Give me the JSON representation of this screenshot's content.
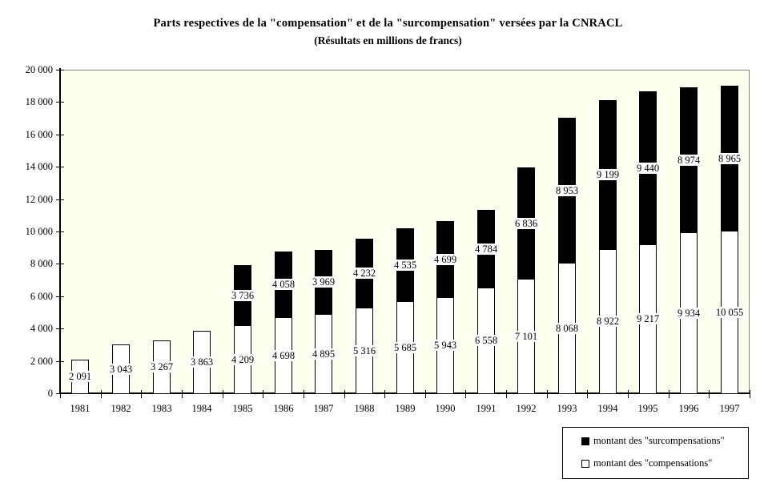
{
  "chart_data": {
    "type": "bar",
    "stacked": true,
    "title": "Parts respectives de la \"compensation\" et de la \"surcompensation\" versées par la CNRACL",
    "subtitle": "(Résultats en millions de francs)",
    "unit": "millions de francs",
    "categories": [
      "1981",
      "1982",
      "1983",
      "1984",
      "1985",
      "1986",
      "1987",
      "1988",
      "1989",
      "1990",
      "1991",
      "1992",
      "1993",
      "1994",
      "1995",
      "1996",
      "1997"
    ],
    "series": [
      {
        "name": "montant des \"compensations\"",
        "color": "#FFFFFF",
        "values": [
          2091,
          3043,
          3267,
          3863,
          4209,
          4698,
          4895,
          5316,
          5685,
          5943,
          6558,
          7101,
          8068,
          8922,
          9217,
          9934,
          10055
        ]
      },
      {
        "name": "montant des \"surcompensations\"",
        "color": "#000000",
        "values": [
          0,
          0,
          0,
          0,
          3736,
          4058,
          3969,
          4232,
          4535,
          4699,
          4784,
          6836,
          8953,
          9199,
          9440,
          8974,
          8965
        ]
      }
    ],
    "ylim": [
      0,
      20000
    ],
    "ytick_step": 2000,
    "ytick_labels": [
      "0",
      "2 000",
      "4 000",
      "6 000",
      "8 000",
      "10 000",
      "12 000",
      "14 000",
      "16 000",
      "18 000",
      "20 000"
    ],
    "grid": "off",
    "legend": {
      "position": "bottom-right",
      "entries": [
        {
          "label": "montant des \"surcompensations\"",
          "swatch_color": "#000000"
        },
        {
          "label": "montant des \"compensations\"",
          "swatch_color": "#FFFFFF"
        }
      ]
    },
    "colors": {
      "plot_bg": "#FFFFF0",
      "frame_border": "#848484",
      "axis": "#000000",
      "bar_fill_compensation": "#FFFFFF",
      "bar_fill_surcompensation": "#000000"
    }
  }
}
